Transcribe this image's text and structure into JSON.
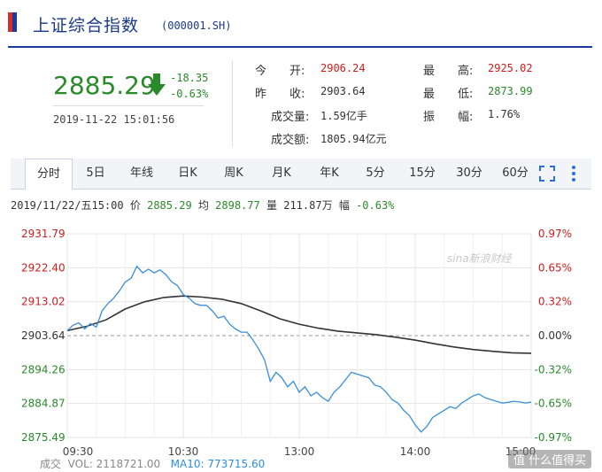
{
  "header": {
    "title": "上证综合指数",
    "code": "(000001.SH)"
  },
  "quote": {
    "price": "2885.29",
    "change": "-18.35",
    "change_pct": "-0.63%",
    "datetime": "2019-11-22 15:01:56",
    "fields": [
      {
        "label": "今　　开:",
        "value": "2906.24",
        "color": "red"
      },
      {
        "label": "昨　　收:",
        "value": "2903.64",
        "color": "dark"
      },
      {
        "label": "成交量:",
        "value": "1.59亿手",
        "color": "dark"
      },
      {
        "label": "成交额:",
        "value": "1805.94亿元",
        "color": "dark"
      },
      {
        "label": "最　　高:",
        "value": "2925.02",
        "color": "red"
      },
      {
        "label": "最　　低:",
        "value": "2873.99",
        "color": "grn"
      },
      {
        "label": "振　　幅:",
        "value": "1.76%",
        "color": "dark"
      }
    ]
  },
  "tabs": [
    "分时",
    "5日",
    "年线",
    "日K",
    "周K",
    "月K",
    "年K",
    "5分",
    "15分",
    "30分",
    "60分"
  ],
  "info_line": {
    "date": "2019/11/22/五15:00",
    "price_label": "价",
    "price": "2885.29",
    "avg_label": "均",
    "avg": "2898.77",
    "vol_label": "量",
    "vol": "211.87万",
    "amp_label": "幅",
    "amp": "-0.63%"
  },
  "watermark": "sina新浪财经",
  "volume_bar": {
    "label": "成交",
    "vol": "VOL: 2118721.00",
    "ma10": "MA10: 773715.60"
  },
  "brand": "值 什么值得买",
  "chart_data": {
    "type": "line",
    "y_left_ticks": [
      "2931.79",
      "2922.40",
      "2913.02",
      "2903.64",
      "2894.26",
      "2884.87",
      "2875.49"
    ],
    "y_right_ticks": [
      "0.97%",
      "0.65%",
      "0.32%",
      "0.00%",
      "-0.32%",
      "-0.65%",
      "-0.97%"
    ],
    "x_ticks": [
      "09:30",
      "10:30",
      "13:00",
      "14:00",
      "15:00"
    ],
    "ylim": [
      2875.49,
      2931.79
    ],
    "xlim": [
      0,
      240
    ],
    "baseline": 2903.64,
    "series": [
      {
        "role": "price",
        "color": "#3a8fd8",
        "points": [
          [
            0,
            2905.0
          ],
          [
            3,
            2906.5
          ],
          [
            6,
            2907.2
          ],
          [
            9,
            2905.5
          ],
          [
            12,
            2907.0
          ],
          [
            15,
            2906.0
          ],
          [
            18,
            2910.5
          ],
          [
            21,
            2912.5
          ],
          [
            24,
            2914.0
          ],
          [
            27,
            2916.0
          ],
          [
            30,
            2918.5
          ],
          [
            33,
            2919.5
          ],
          [
            36,
            2922.8
          ],
          [
            39,
            2921.0
          ],
          [
            42,
            2922.0
          ],
          [
            45,
            2921.0
          ],
          [
            48,
            2921.8
          ],
          [
            51,
            2920.5
          ],
          [
            54,
            2918.5
          ],
          [
            57,
            2917.5
          ],
          [
            60,
            2915.0
          ],
          [
            63,
            2914.0
          ],
          [
            66,
            2912.5
          ],
          [
            69,
            2912.0
          ],
          [
            72,
            2912.0
          ],
          [
            75,
            2910.5
          ],
          [
            78,
            2908.5
          ],
          [
            81,
            2909.0
          ],
          [
            84,
            2906.8
          ],
          [
            87,
            2905.5
          ],
          [
            90,
            2904.6
          ],
          [
            93,
            2904.6
          ],
          [
            96,
            2902.5
          ],
          [
            99,
            2900.0
          ],
          [
            102,
            2897.0
          ],
          [
            105,
            2891.0
          ],
          [
            108,
            2893.5
          ],
          [
            111,
            2892.0
          ],
          [
            114,
            2889.5
          ],
          [
            117,
            2891.0
          ],
          [
            120,
            2888.0
          ],
          [
            123,
            2889.5
          ],
          [
            126,
            2887.0
          ],
          [
            129,
            2888.0
          ],
          [
            132,
            2886.5
          ],
          [
            135,
            2885.5
          ],
          [
            138,
            2888.0
          ],
          [
            141,
            2889.5
          ],
          [
            144,
            2891.5
          ],
          [
            147,
            2893.5
          ],
          [
            150,
            2893.0
          ],
          [
            153,
            2892.5
          ],
          [
            156,
            2892.0
          ],
          [
            159,
            2890.0
          ],
          [
            162,
            2889.5
          ],
          [
            165,
            2888.0
          ],
          [
            168,
            2886.0
          ],
          [
            171,
            2885.0
          ],
          [
            174,
            2883.0
          ],
          [
            177,
            2881.5
          ],
          [
            180,
            2879.0
          ],
          [
            183,
            2877.0
          ],
          [
            186,
            2878.5
          ],
          [
            189,
            2881.0
          ],
          [
            192,
            2882.0
          ],
          [
            195,
            2883.0
          ],
          [
            198,
            2884.0
          ],
          [
            201,
            2883.5
          ],
          [
            204,
            2885.0
          ],
          [
            207,
            2886.0
          ],
          [
            210,
            2887.0
          ],
          [
            213,
            2887.5
          ],
          [
            216,
            2886.5
          ],
          [
            219,
            2886.0
          ],
          [
            222,
            2885.5
          ],
          [
            225,
            2885.0
          ],
          [
            228,
            2885.2
          ],
          [
            231,
            2885.5
          ],
          [
            234,
            2885.3
          ],
          [
            237,
            2885.0
          ],
          [
            240,
            2885.29
          ]
        ]
      },
      {
        "role": "average",
        "color": "#333333",
        "points": [
          [
            0,
            2905.0
          ],
          [
            10,
            2906.2
          ],
          [
            20,
            2908.0
          ],
          [
            30,
            2911.0
          ],
          [
            40,
            2913.0
          ],
          [
            50,
            2914.2
          ],
          [
            60,
            2914.6
          ],
          [
            70,
            2914.3
          ],
          [
            80,
            2913.7
          ],
          [
            90,
            2912.5
          ],
          [
            100,
            2910.5
          ],
          [
            110,
            2908.3
          ],
          [
            120,
            2906.8
          ],
          [
            130,
            2905.7
          ],
          [
            140,
            2904.9
          ],
          [
            150,
            2904.4
          ],
          [
            160,
            2903.9
          ],
          [
            170,
            2903.2
          ],
          [
            180,
            2902.4
          ],
          [
            190,
            2901.4
          ],
          [
            200,
            2900.5
          ],
          [
            210,
            2899.8
          ],
          [
            220,
            2899.3
          ],
          [
            230,
            2898.9
          ],
          [
            240,
            2898.77
          ]
        ]
      }
    ]
  }
}
